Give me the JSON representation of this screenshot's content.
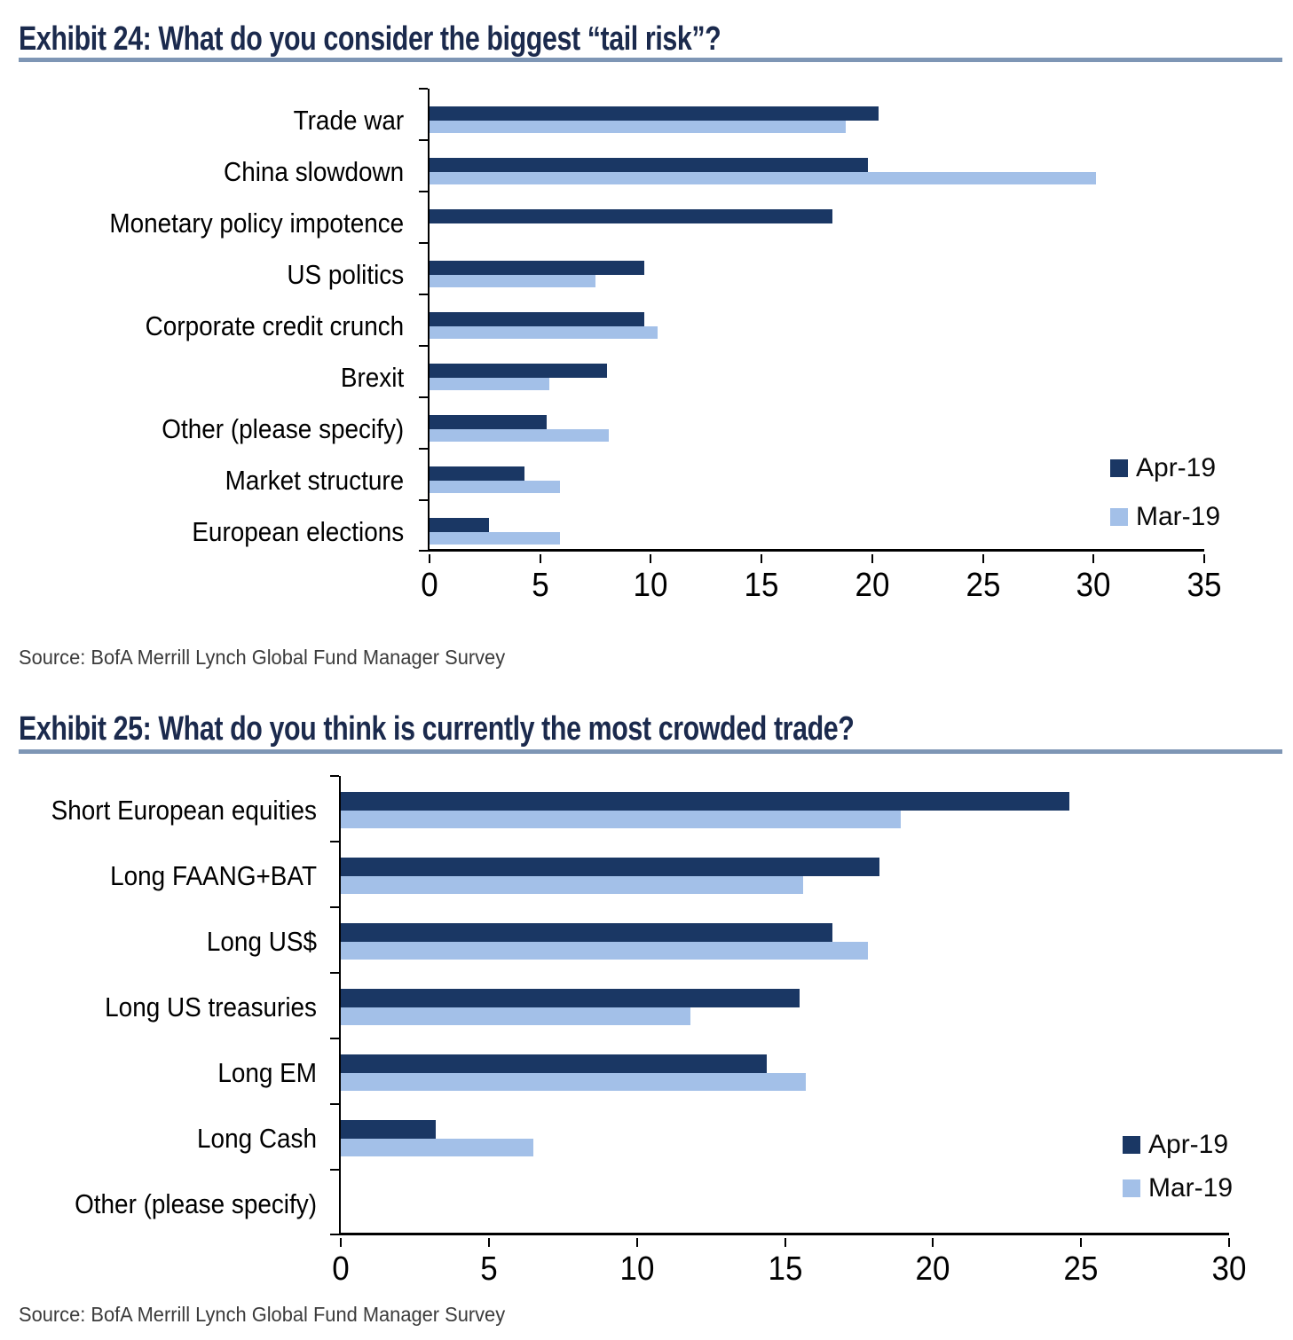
{
  "accent_colors": {
    "title_navy": "#1b2a4d",
    "rule_blue": "#7e96b5",
    "apr_navy": "#1a3764",
    "mar_light_blue": "#a3c0e8"
  },
  "chart_data": [
    {
      "type": "bar",
      "orientation": "horizontal",
      "title": "Exhibit 24: What do you consider the biggest “tail risk”?",
      "source": "Source: BofA Merrill Lynch Global Fund Manager Survey",
      "categories": [
        "Trade war",
        "China slowdown",
        "Monetary policy impotence",
        "US politics",
        "Corporate credit crunch",
        "Brexit",
        "Other (please specify)",
        "Market structure",
        "European elections"
      ],
      "series": [
        {
          "name": "Apr-19",
          "color": "#1a3764",
          "values": [
            20.3,
            19.8,
            18.2,
            9.7,
            9.7,
            8.0,
            5.3,
            4.3,
            2.7
          ]
        },
        {
          "name": "Mar-19",
          "color": "#a3c0e8",
          "values": [
            18.8,
            30.1,
            0,
            7.5,
            10.3,
            5.4,
            8.1,
            5.9,
            5.9
          ]
        }
      ],
      "xlim": [
        0,
        35
      ],
      "xticks": [
        0,
        5,
        10,
        15,
        20,
        25,
        30,
        35
      ],
      "grid": "off",
      "legend_position": "right-middle"
    },
    {
      "type": "bar",
      "orientation": "horizontal",
      "title": "Exhibit 25: What do you think is currently the most crowded trade?",
      "source": "Source: BofA Merrill Lynch Global Fund Manager Survey",
      "categories": [
        "Short European equities",
        "Long FAANG+BAT",
        "Long US$",
        "Long US treasuries",
        "Long EM",
        "Long Cash",
        "Other (please specify)"
      ],
      "series": [
        {
          "name": "Apr-19",
          "color": "#1a3764",
          "values": [
            24.6,
            18.2,
            16.6,
            15.5,
            14.4,
            3.2,
            0
          ]
        },
        {
          "name": "Mar-19",
          "color": "#a3c0e8",
          "values": [
            18.9,
            15.6,
            17.8,
            11.8,
            15.7,
            6.5,
            0
          ]
        }
      ],
      "xlim": [
        0,
        30
      ],
      "xticks": [
        0,
        5,
        10,
        15,
        20,
        25,
        30
      ],
      "grid": "off",
      "legend_position": "right-bottom"
    }
  ]
}
